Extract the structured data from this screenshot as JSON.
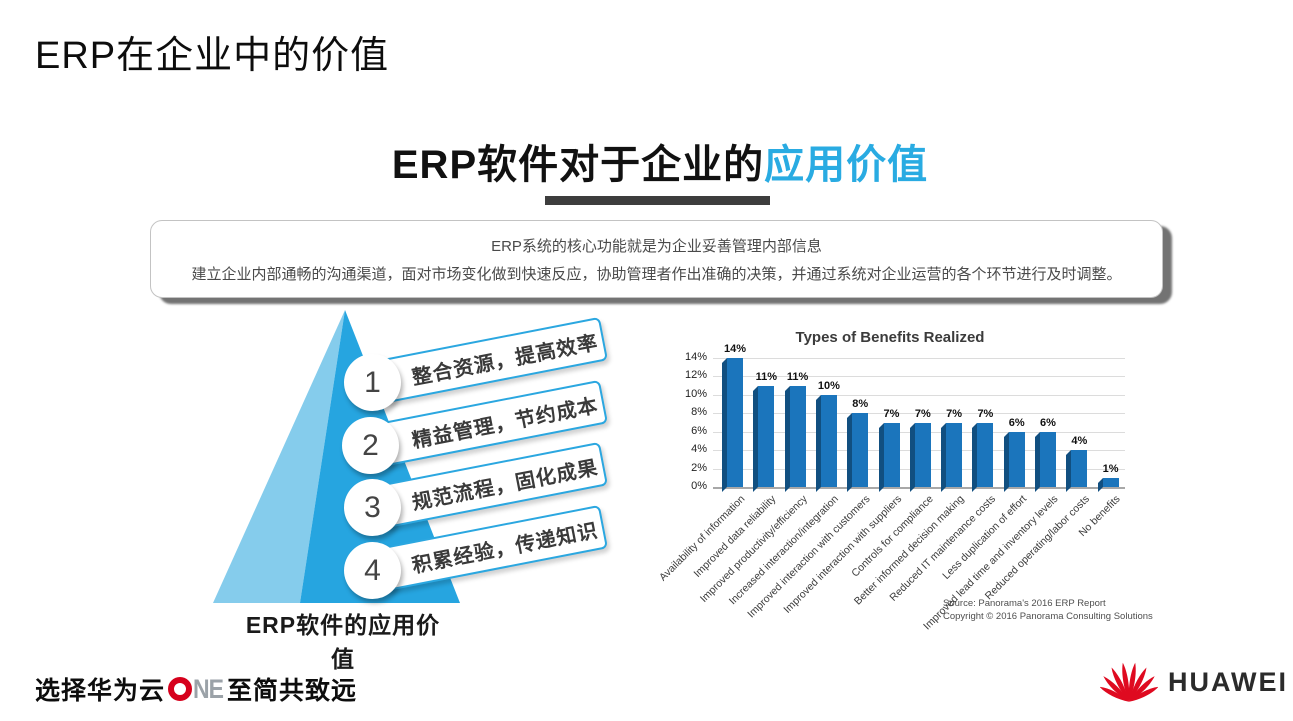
{
  "page": {
    "title": "ERP在企业中的价值"
  },
  "graphic": {
    "title_black": "ERP软件对于企业的",
    "title_blue": "应用价值",
    "desc_line1": "ERP系统的核心功能就是为企业妥善管理内部信息",
    "desc_line2": "建立企业内部通畅的沟通渠道，面对市场变化做到快速反应，协助管理者作出准确的决策，并通过系统对企业运营的各个环节进行及时调整。"
  },
  "pyramid": {
    "caption": "ERP软件的应用价值",
    "items": [
      {
        "num": "1",
        "text": "整合资源，提高效率"
      },
      {
        "num": "2",
        "text": "精益管理，节约成本"
      },
      {
        "num": "3",
        "text": "规范流程，固化成果"
      },
      {
        "num": "4",
        "text": "积累经验，传递知识"
      }
    ],
    "colors": {
      "left_face": "#85ccec",
      "right_face": "#26a5e0"
    }
  },
  "chart_data": {
    "type": "bar",
    "title": "Types of Benefits Realized",
    "categories": [
      "Availability of information",
      "Improved data reliability",
      "Improved productivity/efficiency",
      "Increased interaction/integration",
      "Improved interaction with customers",
      "Improved interaction with suppliers",
      "Controls for compliance",
      "Better informed decision making",
      "Reduced IT maintenance costs",
      "Less duplication of effort",
      "Improved lead time and inventory levels",
      "Reduced operating/labor costs",
      "No benefits"
    ],
    "values": [
      14,
      11,
      11,
      10,
      8,
      7,
      7,
      7,
      7,
      6,
      6,
      4,
      1
    ],
    "unit": "%",
    "ylim": [
      0,
      14
    ],
    "ytick_step": 2,
    "bar_color": "#1b75bc",
    "grid": true,
    "legend": false,
    "source_line1": "Source: Panorama's 2016 ERP Report",
    "source_line2": "Copyright © 2016 Panorama Consulting Solutions"
  },
  "footer": {
    "slogan_left": "选择华为云",
    "one_letters": "NE",
    "slogan_right": "至简共致远",
    "brand": "HUAWEI",
    "brand_color": "#ce0e2d"
  }
}
